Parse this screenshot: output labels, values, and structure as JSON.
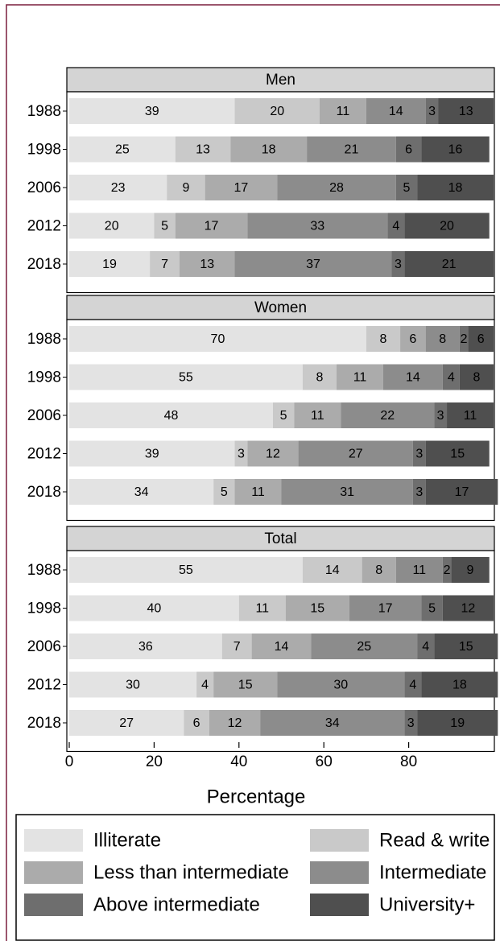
{
  "chart_data": {
    "type": "bar",
    "orientation": "horizontal",
    "stacked": true,
    "panels": [
      "Men",
      "Women",
      "Total"
    ],
    "categories": [
      "1988",
      "1998",
      "2006",
      "2012",
      "2018"
    ],
    "xlabel": "Percentage",
    "xlim": [
      0,
      100
    ],
    "xticks": [
      0,
      20,
      40,
      60,
      80
    ],
    "series": [
      {
        "name": "Illiterate",
        "color": "#e3e3e3",
        "values": [
          [
            39,
            25,
            23,
            20,
            19
          ],
          [
            70,
            55,
            48,
            39,
            34
          ],
          [
            55,
            40,
            36,
            30,
            27
          ]
        ]
      },
      {
        "name": "Read & write",
        "color": "#c9c9c9",
        "values": [
          [
            20,
            13,
            9,
            5,
            7
          ],
          [
            8,
            8,
            5,
            3,
            5
          ],
          [
            14,
            11,
            7,
            4,
            6
          ]
        ]
      },
      {
        "name": "Less than intermediate",
        "color": "#ababab",
        "values": [
          [
            11,
            18,
            17,
            17,
            13
          ],
          [
            6,
            11,
            11,
            12,
            11
          ],
          [
            8,
            15,
            14,
            15,
            12
          ]
        ]
      },
      {
        "name": "Intermediate",
        "color": "#8c8c8c",
        "values": [
          [
            14,
            21,
            28,
            33,
            37
          ],
          [
            8,
            14,
            22,
            27,
            31
          ],
          [
            11,
            17,
            25,
            30,
            34
          ]
        ]
      },
      {
        "name": "Above intermediate",
        "color": "#6e6e6e",
        "values": [
          [
            3,
            6,
            5,
            4,
            3
          ],
          [
            2,
            4,
            3,
            3,
            3
          ],
          [
            2,
            5,
            4,
            4,
            3
          ]
        ]
      },
      {
        "name": "University+",
        "color": "#4f4f4f",
        "values": [
          [
            13,
            16,
            18,
            20,
            21
          ],
          [
            6,
            8,
            11,
            15,
            17
          ],
          [
            9,
            12,
            15,
            18,
            19
          ]
        ]
      }
    ]
  }
}
